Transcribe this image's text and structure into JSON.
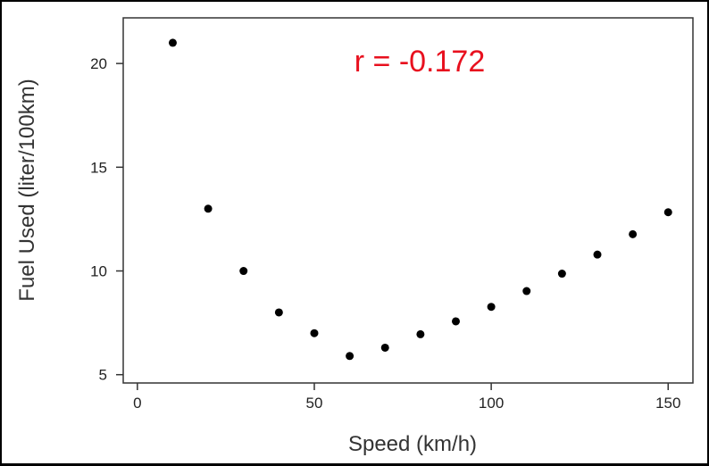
{
  "chart_data": {
    "type": "scatter",
    "xlabel": "Speed (km/h)",
    "ylabel": "Fuel Used (liter/100km)",
    "xlim": [
      -4,
      157
    ],
    "ylim": [
      4.6,
      22.2
    ],
    "xticks": [
      0,
      50,
      100,
      150
    ],
    "yticks": [
      5,
      10,
      15,
      20
    ],
    "xtick_labels": [
      "0",
      "50",
      "100",
      "150"
    ],
    "ytick_labels": [
      "5",
      "10",
      "15",
      "20"
    ],
    "annotation": "r = -0.172",
    "grid": false,
    "colors": {
      "points": "#000000",
      "annotation": "#e8101e"
    },
    "points": [
      {
        "x": 10,
        "y": 21.0
      },
      {
        "x": 20,
        "y": 13.0
      },
      {
        "x": 30,
        "y": 10.0
      },
      {
        "x": 40,
        "y": 8.0
      },
      {
        "x": 50,
        "y": 7.0
      },
      {
        "x": 60,
        "y": 5.9
      },
      {
        "x": 70,
        "y": 6.3
      },
      {
        "x": 80,
        "y": 6.95
      },
      {
        "x": 90,
        "y": 7.57
      },
      {
        "x": 100,
        "y": 8.27
      },
      {
        "x": 110,
        "y": 9.03
      },
      {
        "x": 120,
        "y": 9.87
      },
      {
        "x": 130,
        "y": 10.79
      },
      {
        "x": 140,
        "y": 11.77
      },
      {
        "x": 150,
        "y": 12.83
      }
    ]
  }
}
